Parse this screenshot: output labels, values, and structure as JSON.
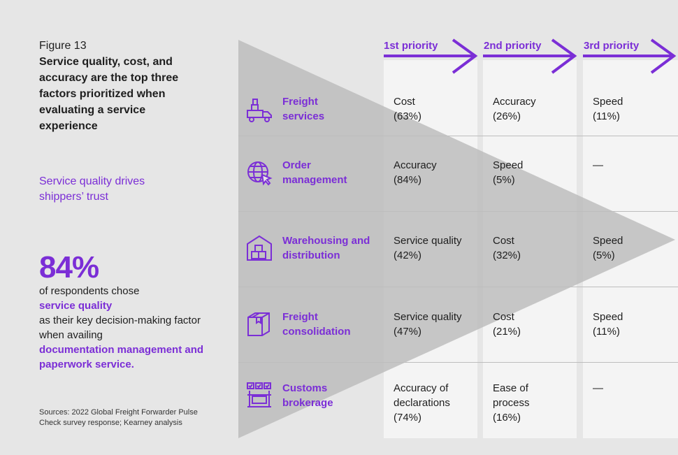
{
  "figure": {
    "label": "Figure 13",
    "title": "Service quality, cost, and accuracy are the top three factors prioritized when evaluating a service experience",
    "subhead": "Service quality drives shippers’ trust"
  },
  "stat": {
    "value": "84%",
    "line1": "of respondents chose",
    "highlight1": "service quality",
    "line2": "as their key decision-making factor when availing",
    "highlight2": "documentation management and paperwork service."
  },
  "sources": "Sources: 2022 Global Freight Forwarder Pulse Check survey response; Kearney analysis",
  "colors": {
    "accent": "#7b2ed6",
    "triangle": "#c4c4c4",
    "column": "#f4f4f4",
    "background": "#e6e6e6"
  },
  "chart_data": {
    "type": "table",
    "columns": [
      "1st priority",
      "2nd priority",
      "3rd priority"
    ],
    "rows": [
      {
        "label": "Freight services",
        "icon": "truck-icon",
        "cells": [
          {
            "name": "Cost",
            "value": "(63%)"
          },
          {
            "name": "Accuracy",
            "value": "(26%)"
          },
          {
            "name": "Speed",
            "value": "(11%)"
          }
        ]
      },
      {
        "label": "Order management",
        "icon": "globe-cursor-icon",
        "cells": [
          {
            "name": "Accuracy",
            "value": "(84%)"
          },
          {
            "name": "Speed",
            "value": "(5%)"
          },
          {
            "name": "—",
            "value": ""
          }
        ]
      },
      {
        "label": "Warehousing and distribution",
        "icon": "warehouse-icon",
        "cells": [
          {
            "name": "Service quality",
            "value": "(42%)"
          },
          {
            "name": "Cost",
            "value": "(32%)"
          },
          {
            "name": "Speed",
            "value": "(5%)"
          }
        ]
      },
      {
        "label": "Freight consolidation",
        "icon": "package-icon",
        "cells": [
          {
            "name": "Service quality",
            "value": "(47%)"
          },
          {
            "name": "Cost",
            "value": "(21%)"
          },
          {
            "name": "Speed",
            "value": "(11%)"
          }
        ]
      },
      {
        "label": "Customs brokerage",
        "icon": "customs-icon",
        "cells": [
          {
            "name": "Accuracy of declarations",
            "value": "(74%)"
          },
          {
            "name": "Ease of process",
            "value": "(16%)"
          },
          {
            "name": "—",
            "value": ""
          }
        ]
      }
    ]
  }
}
